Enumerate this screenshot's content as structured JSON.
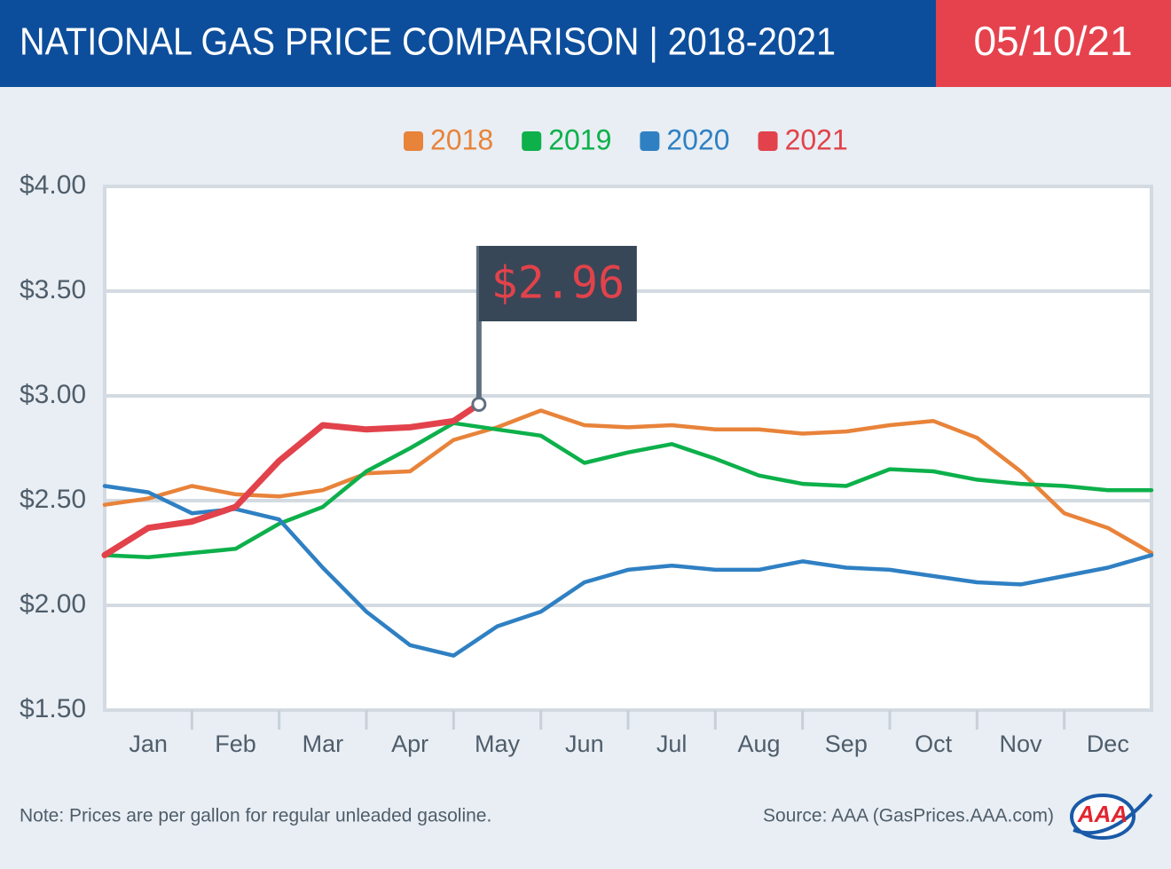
{
  "chart_data": {
    "type": "line",
    "title": "NATIONAL GAS PRICE COMPARISON | 2018-2021",
    "date": "05/10/21",
    "annotation": "$2.96",
    "note": "Note: Prices are per gallon for regular unleaded gasoline.",
    "source": "Source: AAA (GasPrices.AAA.com)",
    "x": [
      0,
      0.5,
      1,
      1.5,
      2,
      2.5,
      3,
      3.5,
      4,
      4.5,
      5,
      5.5,
      6,
      6.5,
      7,
      7.5,
      8,
      8.5,
      9,
      9.5,
      10,
      10.5,
      11,
      11.5,
      12
    ],
    "xlim": [
      0,
      12
    ],
    "xticks": [
      {
        "value": 0.5,
        "label": "Jan"
      },
      {
        "value": 1.5,
        "label": "Feb"
      },
      {
        "value": 2.5,
        "label": "Mar"
      },
      {
        "value": 3.5,
        "label": "Apr"
      },
      {
        "value": 4.5,
        "label": "May"
      },
      {
        "value": 5.5,
        "label": "Jun"
      },
      {
        "value": 6.5,
        "label": "Jul"
      },
      {
        "value": 7.5,
        "label": "Aug"
      },
      {
        "value": 8.5,
        "label": "Sep"
      },
      {
        "value": 9.5,
        "label": "Oct"
      },
      {
        "value": 10.5,
        "label": "Nov"
      },
      {
        "value": 11.5,
        "label": "Dec"
      }
    ],
    "ylim": [
      1.5,
      4
    ],
    "yticks": [
      {
        "value": 1.5,
        "label": "$1.50"
      },
      {
        "value": 2,
        "label": "$2.00"
      },
      {
        "value": 2.5,
        "label": "$2.50"
      },
      {
        "value": 3,
        "label": "$3.00"
      },
      {
        "value": 3.5,
        "label": "$3.50"
      },
      {
        "value": 4,
        "label": "$4.00"
      }
    ],
    "grid": true,
    "series": [
      {
        "name": "2018",
        "color": "#e8833a",
        "values": [
          2.48,
          2.51,
          2.57,
          2.53,
          2.52,
          2.55,
          2.63,
          2.64,
          2.79,
          2.85,
          2.93,
          2.86,
          2.85,
          2.86,
          2.84,
          2.84,
          2.82,
          2.83,
          2.86,
          2.88,
          2.8,
          2.64,
          2.44,
          2.37,
          2.25
        ]
      },
      {
        "name": "2019",
        "color": "#0db04b",
        "values": [
          2.24,
          2.23,
          2.25,
          2.27,
          2.39,
          2.47,
          2.64,
          2.75,
          2.87,
          2.84,
          2.81,
          2.68,
          2.73,
          2.77,
          2.7,
          2.62,
          2.58,
          2.57,
          2.65,
          2.64,
          2.6,
          2.58,
          2.57,
          2.55,
          2.55
        ]
      },
      {
        "name": "2020",
        "color": "#2f80c3",
        "values": [
          2.57,
          2.54,
          2.44,
          2.46,
          2.41,
          2.18,
          1.97,
          1.81,
          1.76,
          1.9,
          1.97,
          2.11,
          2.17,
          2.19,
          2.17,
          2.17,
          2.21,
          2.18,
          2.17,
          2.14,
          2.11,
          2.1,
          2.14,
          2.18,
          2.24
        ]
      },
      {
        "name": "2021",
        "color": "#e2424b",
        "x": [
          0,
          0.5,
          1,
          1.5,
          2,
          2.5,
          3,
          3.5,
          4,
          4.29
        ],
        "values": [
          2.24,
          2.37,
          2.4,
          2.47,
          2.69,
          2.86,
          2.84,
          2.85,
          2.88,
          2.96
        ]
      }
    ]
  }
}
